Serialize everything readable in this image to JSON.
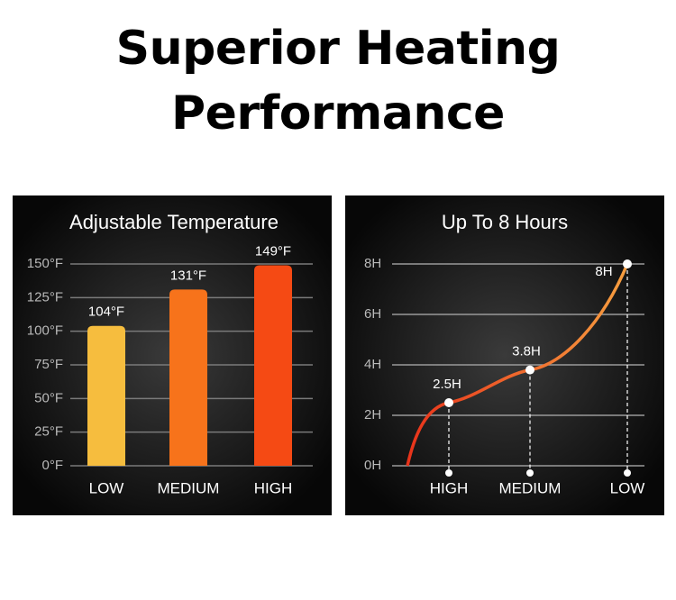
{
  "header": {
    "title": "Superior Heating Performance"
  },
  "chart_data": [
    {
      "type": "bar",
      "title": "Adjustable Temperature",
      "categories": [
        "LOW",
        "MEDIUM",
        "HIGH"
      ],
      "values": [
        104,
        131,
        149
      ],
      "value_labels": [
        "104°F",
        "131°F",
        "149°F"
      ],
      "colors": [
        "#f6bd3e",
        "#f7731b",
        "#f54a14"
      ],
      "ylim": [
        0,
        150
      ],
      "yticks": [
        {
          "value": 0,
          "label": "0°F"
        },
        {
          "value": 25,
          "label": "25°F"
        },
        {
          "value": 50,
          "label": "50°F"
        },
        {
          "value": 75,
          "label": "75°F"
        },
        {
          "value": 100,
          "label": "100°F"
        },
        {
          "value": 125,
          "label": "125°F"
        },
        {
          "value": 150,
          "label": "150°F"
        }
      ],
      "grid": true
    },
    {
      "type": "line",
      "title": "Up To 8 Hours",
      "categories": [
        "HIGH",
        "MEDIUM",
        "LOW"
      ],
      "values": [
        2.5,
        3.8,
        8
      ],
      "value_labels": [
        "2.5H",
        "3.8H",
        "8H"
      ],
      "colors": [
        "#e8321a",
        "#f7a040"
      ],
      "ylim": [
        0,
        8
      ],
      "yticks": [
        {
          "value": 0,
          "label": "0H"
        },
        {
          "value": 2,
          "label": "2H"
        },
        {
          "value": 4,
          "label": "4H"
        },
        {
          "value": 6,
          "label": "6H"
        },
        {
          "value": 8,
          "label": "8H"
        }
      ],
      "grid": true
    }
  ]
}
